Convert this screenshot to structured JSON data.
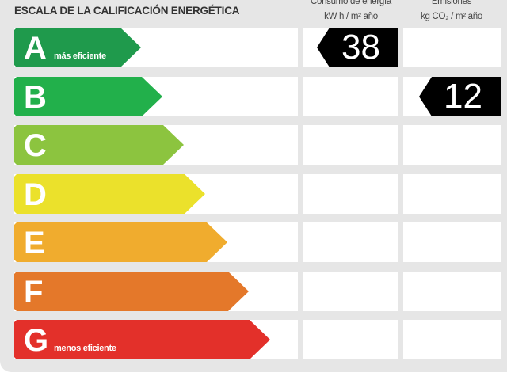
{
  "title": "ESCALA DE LA CALIFICACIÓN ENERGÉTICA",
  "columns": {
    "consumption": {
      "label": "Consumo de energía",
      "unit": "kW h  / m² año"
    },
    "emissions": {
      "label": "Emisiones",
      "unit": "kg CO₂  / m² año"
    }
  },
  "ratings": [
    {
      "letter": "A",
      "note": "más eficiente",
      "color": "#1f9a4c"
    },
    {
      "letter": "B",
      "note": "",
      "color": "#22b04b"
    },
    {
      "letter": "C",
      "note": "",
      "color": "#8cc43f"
    },
    {
      "letter": "D",
      "note": "",
      "color": "#ebe12b"
    },
    {
      "letter": "E",
      "note": "",
      "color": "#f0ac2e"
    },
    {
      "letter": "F",
      "note": "",
      "color": "#e4782a"
    },
    {
      "letter": "G",
      "note": "menos eficiente",
      "color": "#e3302a"
    }
  ],
  "consumption_value": {
    "rating": "A",
    "value": "38"
  },
  "emissions_value": {
    "rating": "B",
    "value": "12"
  }
}
